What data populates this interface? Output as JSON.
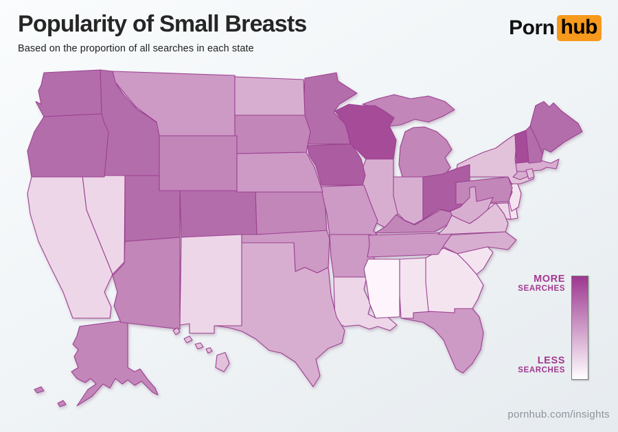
{
  "header": {
    "title": "Popularity of Small Breasts",
    "subtitle": "Based on the proportion of all searches in each state"
  },
  "logo": {
    "part1": "Porn",
    "part2": "hub",
    "accent_color": "#f7991c",
    "text_color": "#000000"
  },
  "legend": {
    "more_line1": "MORE",
    "more_line2": "SEARCHES",
    "less_line1": "LESS",
    "less_line2": "SEARCHES",
    "label_color": "#a3378f",
    "gradient_top": "#9d3790",
    "gradient_bottom": "#ffffff"
  },
  "footer": {
    "text": "pornhub.com/insights"
  },
  "chart_data": {
    "type": "choropleth",
    "region": "United States",
    "title": "Popularity of Small Breasts",
    "metric": "Proportion of all Pornhub searches in each state for 'small breasts'",
    "legend": {
      "high": "MORE SEARCHES",
      "low": "LESS SEARCHES"
    },
    "scale": {
      "levels": 10,
      "note": "level 9 = most searches (darkest), level 0 = least searches (lightest)",
      "palette": [
        "#fdf5fb",
        "#f4e4f0",
        "#edd6e8",
        "#e2c2db",
        "#d8aed0",
        "#cd99c5",
        "#c286b9",
        "#b46dab",
        "#ac5ba1",
        "#a54b98"
      ],
      "border_color": "#9b4190"
    },
    "states": [
      {
        "code": "AL",
        "name": "Alabama",
        "level": 1
      },
      {
        "code": "AK",
        "name": "Alaska",
        "level": 6
      },
      {
        "code": "AZ",
        "name": "Arizona",
        "level": 6
      },
      {
        "code": "AR",
        "name": "Arkansas",
        "level": 5
      },
      {
        "code": "CA",
        "name": "California",
        "level": 2
      },
      {
        "code": "CO",
        "name": "Colorado",
        "level": 7
      },
      {
        "code": "CT",
        "name": "Connecticut",
        "level": 4
      },
      {
        "code": "DE",
        "name": "Delaware",
        "level": 1
      },
      {
        "code": "FL",
        "name": "Florida",
        "level": 5
      },
      {
        "code": "GA",
        "name": "Georgia",
        "level": 1
      },
      {
        "code": "HI",
        "name": "Hawaii",
        "level": 3
      },
      {
        "code": "ID",
        "name": "Idaho",
        "level": 7
      },
      {
        "code": "IL",
        "name": "Illinois",
        "level": 4
      },
      {
        "code": "IN",
        "name": "Indiana",
        "level": 4
      },
      {
        "code": "IA",
        "name": "Iowa",
        "level": 8
      },
      {
        "code": "KS",
        "name": "Kansas",
        "level": 6
      },
      {
        "code": "KY",
        "name": "Kentucky",
        "level": 6
      },
      {
        "code": "LA",
        "name": "Louisiana",
        "level": 2
      },
      {
        "code": "ME",
        "name": "Maine",
        "level": 7
      },
      {
        "code": "MD",
        "name": "Maryland",
        "level": 2
      },
      {
        "code": "MA",
        "name": "Massachusetts",
        "level": 4
      },
      {
        "code": "MI",
        "name": "Michigan",
        "level": 6
      },
      {
        "code": "MN",
        "name": "Minnesota",
        "level": 7
      },
      {
        "code": "MS",
        "name": "Mississippi",
        "level": 0
      },
      {
        "code": "MO",
        "name": "Missouri",
        "level": 5
      },
      {
        "code": "MT",
        "name": "Montana",
        "level": 5
      },
      {
        "code": "NE",
        "name": "Nebraska",
        "level": 5
      },
      {
        "code": "NV",
        "name": "Nevada",
        "level": 2
      },
      {
        "code": "NH",
        "name": "New Hampshire",
        "level": 7
      },
      {
        "code": "NJ",
        "name": "New Jersey",
        "level": 1
      },
      {
        "code": "NM",
        "name": "New Mexico",
        "level": 2
      },
      {
        "code": "NY",
        "name": "New York",
        "level": 3
      },
      {
        "code": "NC",
        "name": "North Carolina",
        "level": 4
      },
      {
        "code": "ND",
        "name": "North Dakota",
        "level": 4
      },
      {
        "code": "OH",
        "name": "Ohio",
        "level": 8
      },
      {
        "code": "OK",
        "name": "Oklahoma",
        "level": 5
      },
      {
        "code": "OR",
        "name": "Oregon",
        "level": 7
      },
      {
        "code": "PA",
        "name": "Pennsylvania",
        "level": 6
      },
      {
        "code": "RI",
        "name": "Rhode Island",
        "level": 3
      },
      {
        "code": "SC",
        "name": "South Carolina",
        "level": 1
      },
      {
        "code": "SD",
        "name": "South Dakota",
        "level": 6
      },
      {
        "code": "TN",
        "name": "Tennessee",
        "level": 5
      },
      {
        "code": "TX",
        "name": "Texas",
        "level": 4
      },
      {
        "code": "UT",
        "name": "Utah",
        "level": 7
      },
      {
        "code": "VT",
        "name": "Vermont",
        "level": 9
      },
      {
        "code": "VA",
        "name": "Virginia",
        "level": 3
      },
      {
        "code": "WA",
        "name": "Washington",
        "level": 7
      },
      {
        "code": "WV",
        "name": "West Virginia",
        "level": 4
      },
      {
        "code": "WI",
        "name": "Wisconsin",
        "level": 9
      },
      {
        "code": "WY",
        "name": "Wyoming",
        "level": 6
      }
    ]
  }
}
